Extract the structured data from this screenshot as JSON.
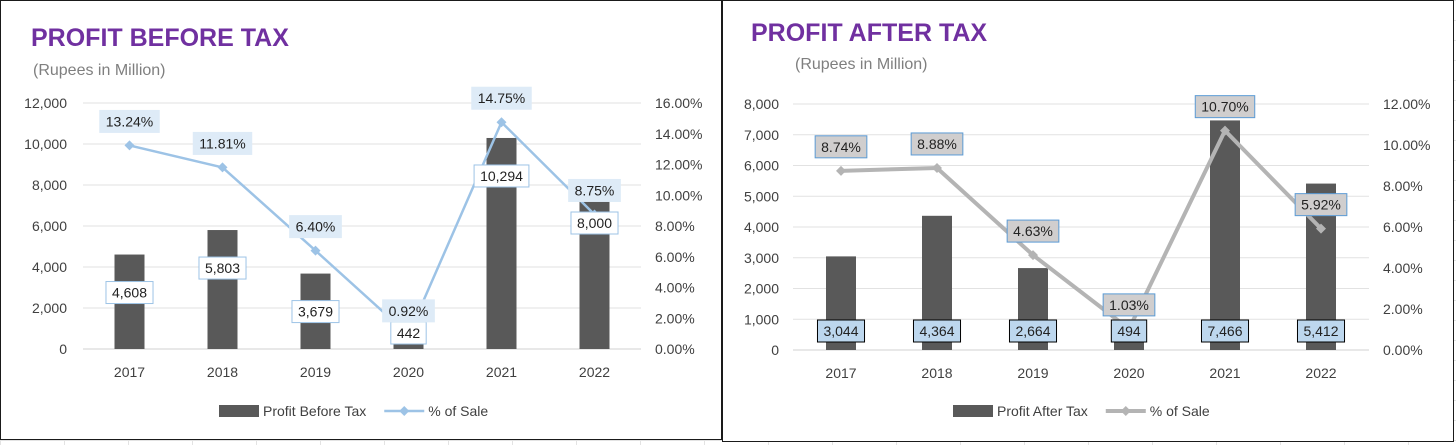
{
  "chart_data": [
    {
      "type": "bar",
      "title": "PROFIT BEFORE TAX",
      "subtitle": "(Rupees in Million)",
      "categories": [
        "2017",
        "2018",
        "2019",
        "2020",
        "2021",
        "2022"
      ],
      "series": [
        {
          "name": "Profit Before Tax",
          "type": "bar",
          "axis": "left",
          "values": [
            4608,
            5803,
            3679,
            442,
            10294,
            8000
          ],
          "labels": [
            "4,608",
            "5,803",
            "3,679",
            "442",
            "10,294",
            "8,000"
          ]
        },
        {
          "name": "% of Sale",
          "type": "line",
          "axis": "right",
          "values": [
            13.24,
            11.81,
            6.4,
            0.92,
            14.75,
            8.75
          ],
          "labels": [
            "13.24%",
            "11.81%",
            "6.40%",
            "0.92%",
            "14.75%",
            "8.75%"
          ]
        }
      ],
      "ylim": [
        0,
        12000
      ],
      "y_ticks": [
        "0",
        "2,000",
        "4,000",
        "6,000",
        "8,000",
        "10,000",
        "12,000"
      ],
      "y2lim": [
        0,
        16
      ],
      "y2_ticks": [
        "0.00%",
        "2.00%",
        "4.00%",
        "6.00%",
        "8.00%",
        "10.00%",
        "12.00%",
        "14.00%",
        "16.00%"
      ],
      "grid": true,
      "legend_position": "bottom",
      "colors": {
        "title": "#7030a0",
        "bar": "#595959",
        "line": "#9dc3e6",
        "bar_label_bg": "#ffffff",
        "bar_label_border": "#9dc3e6",
        "line_label_bg": "#deebf7",
        "line_label_border": "#deebf7"
      }
    },
    {
      "type": "bar",
      "title": "PROFIT AFTER TAX",
      "subtitle": "(Rupees in Million)",
      "categories": [
        "2017",
        "2018",
        "2019",
        "2020",
        "2021",
        "2022"
      ],
      "series": [
        {
          "name": "Profit After Tax",
          "type": "bar",
          "axis": "left",
          "values": [
            3044,
            4364,
            2664,
            494,
            7466,
            5412
          ],
          "labels": [
            "3,044",
            "4,364",
            "2,664",
            "494",
            "7,466",
            "5,412"
          ]
        },
        {
          "name": "% of Sale",
          "type": "line",
          "axis": "right",
          "values": [
            8.74,
            8.88,
            4.63,
            1.03,
            10.7,
            5.92
          ],
          "labels": [
            "8.74%",
            "8.88%",
            "4.63%",
            "1.03%",
            "10.70%",
            "5.92%"
          ]
        }
      ],
      "ylim": [
        0,
        8000
      ],
      "y_ticks": [
        "0",
        "1,000",
        "2,000",
        "3,000",
        "4,000",
        "5,000",
        "6,000",
        "7,000",
        "8,000"
      ],
      "y2lim": [
        0,
        12
      ],
      "y2_ticks": [
        "0.00%",
        "2.00%",
        "4.00%",
        "6.00%",
        "8.00%",
        "10.00%",
        "12.00%"
      ],
      "grid": true,
      "legend_position": "bottom",
      "colors": {
        "title": "#7030a0",
        "bar": "#595959",
        "line": "#b4b4b4",
        "bar_label_bg": "#bdd7ee",
        "bar_label_border": "#000000",
        "line_label_bg": "#d0cece",
        "line_label_border": "#5b9bd5"
      }
    }
  ]
}
